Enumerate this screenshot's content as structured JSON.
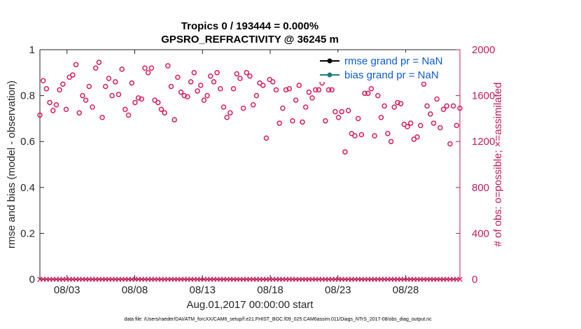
{
  "chart_data": {
    "type": "scatter",
    "title_line1": "Tropics 0 / 193444 = 0.000%",
    "title_line2": "GPSRO_REFRACTIVITY @ 36245 m",
    "ylabel_left": "rmse and bias (model - observation)",
    "ylabel_right": "# of obs: o=possible; ×=assimilated",
    "xlabel": "Aug.01,2017 00:00:00 start",
    "left_ylim": [
      0,
      1
    ],
    "left_yticks": [
      "0",
      "0.2",
      "0.4",
      "0.6",
      "0.8",
      "1"
    ],
    "right_ylim": [
      0,
      2000
    ],
    "right_yticks": [
      "0",
      "400",
      "800",
      "1200",
      "1600",
      "2000"
    ],
    "xlim": [
      1.0,
      32.0
    ],
    "xticks": [
      {
        "value": 3.0,
        "label": "08/03"
      },
      {
        "value": 8.0,
        "label": "08/08"
      },
      {
        "value": 13.0,
        "label": "08/13"
      },
      {
        "value": 18.0,
        "label": "08/18"
      },
      {
        "value": 23.0,
        "label": "08/23"
      },
      {
        "value": 28.0,
        "label": "08/28"
      }
    ],
    "legend": [
      {
        "label": "rmse grand pr = NaN",
        "color": "#000000"
      },
      {
        "label": "bias grand pr = NaN",
        "color": "#1a8080"
      }
    ],
    "possible_obs": [
      1430,
      1730,
      1660,
      1540,
      1470,
      1520,
      1650,
      1700,
      1480,
      1760,
      1780,
      1870,
      1450,
      1600,
      1560,
      1680,
      1500,
      1840,
      1890,
      1410,
      1680,
      1750,
      1600,
      1720,
      1610,
      1830,
      1480,
      1430,
      1710,
      1540,
      1580,
      1570,
      1840,
      1800,
      1840,
      1560,
      1540,
      1480,
      1450,
      1860,
      1680,
      1390,
      1760,
      1630,
      1600,
      1590,
      1720,
      1800,
      1640,
      1690,
      1560,
      1600,
      1770,
      1720,
      1800,
      1660,
      1500,
      1410,
      1450,
      1660,
      1790,
      1750,
      1490,
      1800,
      1770,
      1520,
      1600,
      1710,
      1690,
      1230,
      1740,
      1720,
      1650,
      1360,
      1490,
      1650,
      1660,
      1380,
      1560,
      1690,
      1370,
      1500,
      1630,
      1580,
      1650,
      1650,
      1710,
      1380,
      1650,
      1650,
      1460,
      1410,
      1460,
      1110,
      1470,
      1270,
      1250,
      1400,
      1260,
      1620,
      1620,
      1660,
      1250,
      1600,
      1410,
      1510,
      1270,
      1200,
      1500,
      1540,
      1530,
      1350,
      1330,
      1360,
      1220,
      1240,
      1340,
      1700,
      1510,
      1440,
      1360,
      1570,
      1320,
      1480,
      1510,
      1180,
      1510,
      1340,
      1490
    ]
  },
  "footer": "data file: /Users/raeder/DAI/ATM_forcXX/CAM6_setup/f.e21.FHIST_BGC.f09_025.CAM6assim.011/Diags_NTrS_2017-08/obs_diag_output.nc"
}
